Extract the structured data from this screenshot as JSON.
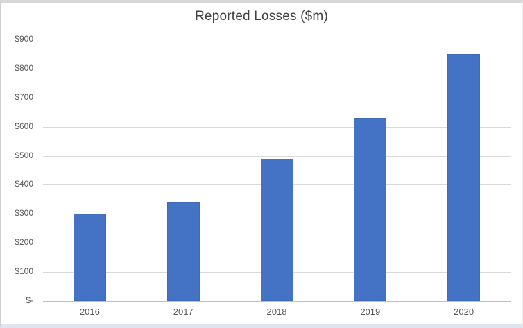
{
  "chart": {
    "title": "Reported Losses ($m)"
  },
  "chart_data": {
    "type": "bar",
    "title": "Reported Losses ($m)",
    "categories": [
      "2016",
      "2017",
      "2018",
      "2019",
      "2020"
    ],
    "values": [
      300,
      340,
      490,
      630,
      850
    ],
    "xlabel": "",
    "ylabel": "",
    "ylim": [
      0,
      900
    ],
    "y_tick_step": 100,
    "y_tick_labels": [
      "$-",
      "$100",
      "$200",
      "$300",
      "$400",
      "$500",
      "$600",
      "$700",
      "$800",
      "$900"
    ],
    "grid": "horizontal",
    "legend_position": "none",
    "colors": {
      "bar_fill": "#4472C4",
      "bar_edge": "#3E69B8",
      "gridline": "#D9D9D9",
      "axis_line": "#BFBFBF",
      "tick_label": "#595959",
      "title": "#404040",
      "background": "#FFFFFF"
    }
  }
}
